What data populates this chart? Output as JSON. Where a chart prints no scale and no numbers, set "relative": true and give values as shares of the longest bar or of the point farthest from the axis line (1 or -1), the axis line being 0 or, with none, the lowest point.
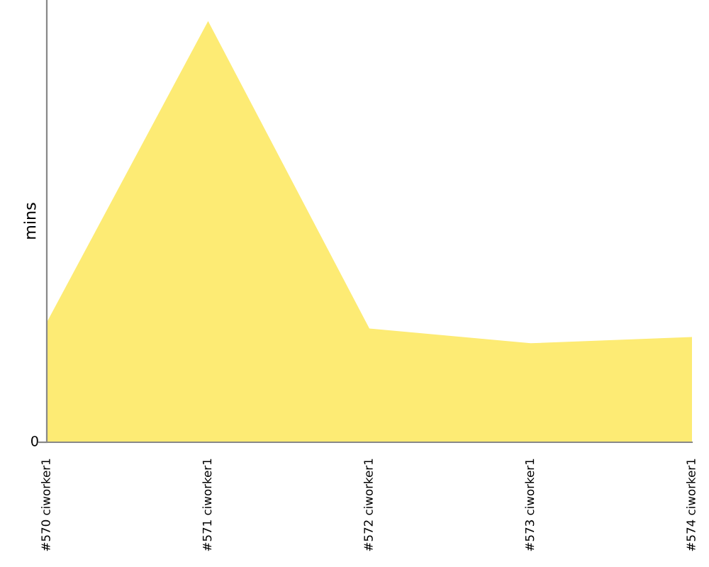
{
  "chart_data": {
    "type": "area",
    "ylabel": "mins",
    "relative": true,
    "annotations": [
      "0"
    ],
    "categories": [
      "#570 ciworker1",
      "#571 ciworker1",
      "#572 ciworker1",
      "#573 ciworker1",
      "#574 ciworker1"
    ],
    "series": [
      {
        "color": "#fdeb74",
        "values": [
          0.285,
          1,
          0.27,
          0.235,
          0.25
        ]
      }
    ],
    "grid": false,
    "legend": false
  }
}
